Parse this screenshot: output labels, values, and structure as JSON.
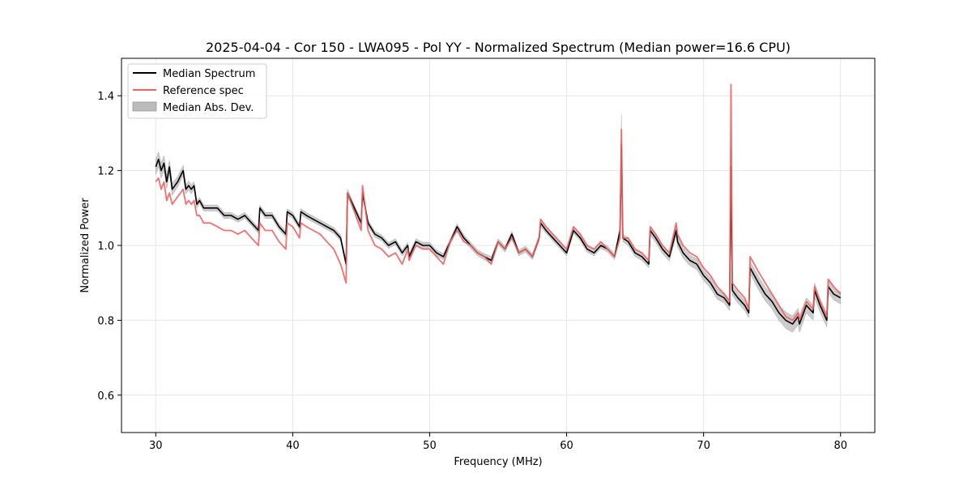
{
  "chart_data": {
    "type": "line",
    "title": "2025-04-04 - Cor 150 - LWA095 - Pol YY - Normalized Spectrum (Median power=16.6 CPU)",
    "xlabel": "Frequency (MHz)",
    "ylabel": "Normalized Power",
    "xlim": [
      27.5,
      82.5
    ],
    "ylim": [
      0.5,
      1.5
    ],
    "xticks": [
      30,
      40,
      50,
      60,
      70,
      80
    ],
    "yticks": [
      0.6,
      0.8,
      1.0,
      1.2,
      1.4
    ],
    "xtick_labels": [
      "30",
      "40",
      "50",
      "60",
      "70",
      "80"
    ],
    "ytick_labels": [
      "0.6",
      "0.8",
      "1.0",
      "1.2",
      "1.4"
    ],
    "grid": true,
    "legend_position": "top-left",
    "legend": [
      {
        "label": "Median Spectrum",
        "kind": "line",
        "color": "#000000"
      },
      {
        "label": "Reference spec",
        "kind": "line",
        "color": "#f06060"
      },
      {
        "label": "Median Abs. Dev.",
        "kind": "patch",
        "color": "#bbbbbb"
      }
    ],
    "series": [
      {
        "name": "Median Spectrum",
        "color": "#000000",
        "x": [
          30.0,
          30.2,
          30.4,
          30.6,
          30.8,
          31.0,
          31.2,
          31.6,
          32.0,
          32.2,
          32.4,
          32.6,
          32.8,
          33.0,
          33.2,
          33.5,
          34.0,
          34.5,
          35.0,
          35.5,
          36.0,
          36.5,
          37.0,
          37.5,
          37.6,
          38.0,
          38.5,
          39.0,
          39.5,
          39.6,
          40.0,
          40.5,
          40.6,
          41.0,
          41.5,
          42.0,
          42.5,
          43.0,
          43.5,
          43.9,
          44.0,
          44.5,
          45.0,
          45.1,
          45.5,
          46.0,
          46.5,
          47.0,
          47.5,
          48.0,
          48.4,
          48.5,
          49.0,
          49.5,
          50.0,
          50.5,
          51.0,
          51.5,
          52.0,
          52.5,
          53.0,
          53.5,
          54.0,
          54.5,
          55.0,
          55.5,
          56.0,
          56.5,
          57.0,
          57.5,
          58.0,
          58.1,
          58.5,
          59.0,
          59.5,
          60.0,
          60.5,
          61.0,
          61.5,
          62.0,
          62.5,
          63.0,
          63.5,
          63.9,
          64.0,
          64.1,
          64.5,
          65.0,
          65.5,
          66.0,
          66.1,
          66.5,
          67.0,
          67.5,
          68.0,
          68.1,
          68.5,
          69.0,
          69.5,
          70.0,
          70.5,
          71.0,
          71.5,
          71.9,
          72.0,
          72.1,
          72.5,
          73.0,
          73.3,
          73.4,
          74.0,
          74.5,
          75.0,
          75.5,
          76.0,
          76.5,
          76.9,
          77.0,
          77.5,
          78.0,
          78.1,
          78.5,
          79.0,
          79.1,
          79.5,
          80.0
        ],
        "y": [
          1.21,
          1.23,
          1.2,
          1.22,
          1.17,
          1.21,
          1.15,
          1.17,
          1.2,
          1.15,
          1.16,
          1.15,
          1.16,
          1.11,
          1.12,
          1.1,
          1.1,
          1.1,
          1.08,
          1.08,
          1.07,
          1.08,
          1.06,
          1.04,
          1.1,
          1.08,
          1.08,
          1.05,
          1.03,
          1.09,
          1.08,
          1.05,
          1.09,
          1.08,
          1.07,
          1.06,
          1.05,
          1.04,
          1.02,
          0.95,
          1.14,
          1.1,
          1.06,
          1.14,
          1.06,
          1.03,
          1.02,
          1.0,
          1.01,
          0.98,
          1.0,
          0.97,
          1.01,
          1.0,
          1.0,
          0.98,
          0.97,
          1.01,
          1.05,
          1.02,
          1.0,
          0.98,
          0.97,
          0.96,
          1.01,
          0.99,
          1.03,
          0.98,
          0.99,
          0.97,
          1.02,
          1.06,
          1.04,
          1.02,
          1.0,
          0.98,
          1.04,
          1.02,
          0.99,
          0.98,
          1.0,
          0.99,
          0.97,
          1.04,
          1.27,
          1.02,
          1.01,
          0.98,
          0.97,
          0.95,
          1.04,
          1.02,
          0.99,
          0.97,
          1.04,
          1.01,
          0.98,
          0.96,
          0.95,
          0.92,
          0.9,
          0.87,
          0.86,
          0.84,
          1.21,
          0.88,
          0.86,
          0.84,
          0.82,
          0.94,
          0.9,
          0.87,
          0.85,
          0.82,
          0.8,
          0.79,
          0.81,
          0.79,
          0.84,
          0.82,
          0.88,
          0.84,
          0.8,
          0.89,
          0.87,
          0.86
        ]
      },
      {
        "name": "Reference spec",
        "color": "#f06060",
        "x": [
          30.0,
          30.2,
          30.4,
          30.6,
          30.8,
          31.0,
          31.2,
          31.6,
          32.0,
          32.2,
          32.4,
          32.6,
          32.8,
          33.0,
          33.2,
          33.5,
          34.0,
          34.5,
          35.0,
          35.5,
          36.0,
          36.5,
          37.0,
          37.5,
          37.6,
          38.0,
          38.5,
          39.0,
          39.5,
          39.6,
          40.0,
          40.5,
          40.6,
          41.0,
          41.5,
          42.0,
          42.5,
          43.0,
          43.5,
          43.9,
          44.0,
          44.5,
          45.0,
          45.1,
          45.5,
          46.0,
          46.5,
          47.0,
          47.5,
          48.0,
          48.4,
          48.5,
          49.0,
          49.5,
          50.0,
          50.5,
          51.0,
          51.5,
          52.0,
          52.5,
          53.0,
          53.5,
          54.0,
          54.5,
          55.0,
          55.5,
          56.0,
          56.5,
          57.0,
          57.5,
          58.0,
          58.1,
          58.5,
          59.0,
          59.5,
          60.0,
          60.5,
          61.0,
          61.5,
          62.0,
          62.5,
          63.0,
          63.5,
          63.9,
          64.0,
          64.1,
          64.5,
          65.0,
          65.5,
          66.0,
          66.1,
          66.5,
          67.0,
          67.5,
          68.0,
          68.1,
          68.5,
          69.0,
          69.5,
          70.0,
          70.5,
          71.0,
          71.5,
          71.9,
          72.0,
          72.1,
          72.5,
          73.0,
          73.3,
          73.4,
          74.0,
          74.5,
          75.0,
          75.5,
          76.0,
          76.5,
          76.9,
          77.0,
          77.5,
          78.0,
          78.1,
          78.5,
          79.0,
          79.1,
          79.5,
          80.0
        ],
        "y": [
          1.17,
          1.18,
          1.15,
          1.17,
          1.12,
          1.14,
          1.11,
          1.13,
          1.15,
          1.11,
          1.12,
          1.11,
          1.12,
          1.08,
          1.08,
          1.06,
          1.06,
          1.05,
          1.04,
          1.04,
          1.03,
          1.04,
          1.02,
          1.0,
          1.06,
          1.04,
          1.04,
          1.01,
          0.99,
          1.06,
          1.05,
          1.02,
          1.06,
          1.05,
          1.04,
          1.03,
          1.01,
          0.99,
          0.95,
          0.9,
          1.14,
          1.09,
          1.04,
          1.16,
          1.04,
          1.0,
          0.99,
          0.97,
          0.98,
          0.95,
          0.99,
          0.96,
          1.0,
          0.99,
          0.99,
          0.97,
          0.95,
          1.01,
          1.04,
          1.01,
          1.0,
          0.98,
          0.97,
          0.95,
          1.01,
          0.99,
          1.02,
          0.98,
          0.99,
          0.97,
          1.02,
          1.07,
          1.05,
          1.03,
          1.01,
          0.99,
          1.05,
          1.03,
          1.0,
          0.99,
          1.01,
          0.99,
          0.97,
          1.02,
          1.31,
          1.02,
          1.02,
          0.99,
          0.98,
          0.96,
          1.05,
          1.03,
          1.0,
          0.98,
          1.06,
          1.03,
          1.0,
          0.98,
          0.97,
          0.94,
          0.92,
          0.89,
          0.87,
          0.85,
          1.43,
          0.9,
          0.88,
          0.86,
          0.83,
          0.97,
          0.93,
          0.9,
          0.87,
          0.84,
          0.81,
          0.8,
          0.82,
          0.8,
          0.85,
          0.83,
          0.89,
          0.85,
          0.81,
          0.91,
          0.89,
          0.87
        ]
      }
    ],
    "mad_band": {
      "name": "Median Abs. Dev.",
      "color": "#bbbbbb",
      "half_width": [
        0.02,
        0.02,
        0.02,
        0.02,
        0.018,
        0.018,
        0.016,
        0.014,
        0.014,
        0.012,
        0.012,
        0.012,
        0.01,
        0.01,
        0.008,
        0.008,
        0.008,
        0.008,
        0.008,
        0.008,
        0.008,
        0.008,
        0.008,
        0.008,
        0.008,
        0.008,
        0.008,
        0.008,
        0.008,
        0.008,
        0.008,
        0.008,
        0.008,
        0.008,
        0.008,
        0.008,
        0.008,
        0.008,
        0.008,
        0.008,
        0.01,
        0.008,
        0.008,
        0.01,
        0.008,
        0.008,
        0.008,
        0.008,
        0.008,
        0.008,
        0.008,
        0.008,
        0.008,
        0.008,
        0.008,
        0.008,
        0.008,
        0.008,
        0.008,
        0.008,
        0.008,
        0.008,
        0.008,
        0.01,
        0.008,
        0.008,
        0.008,
        0.008,
        0.008,
        0.008,
        0.008,
        0.008,
        0.008,
        0.008,
        0.008,
        0.008,
        0.008,
        0.008,
        0.008,
        0.008,
        0.008,
        0.008,
        0.008,
        0.01,
        0.08,
        0.01,
        0.01,
        0.01,
        0.01,
        0.01,
        0.012,
        0.012,
        0.012,
        0.012,
        0.014,
        0.014,
        0.014,
        0.014,
        0.014,
        0.014,
        0.014,
        0.014,
        0.014,
        0.014,
        0.05,
        0.014,
        0.014,
        0.014,
        0.014,
        0.016,
        0.018,
        0.018,
        0.02,
        0.02,
        0.022,
        0.022,
        0.022,
        0.022,
        0.02,
        0.02,
        0.02,
        0.018,
        0.018,
        0.016,
        0.016,
        0.016
      ]
    }
  }
}
